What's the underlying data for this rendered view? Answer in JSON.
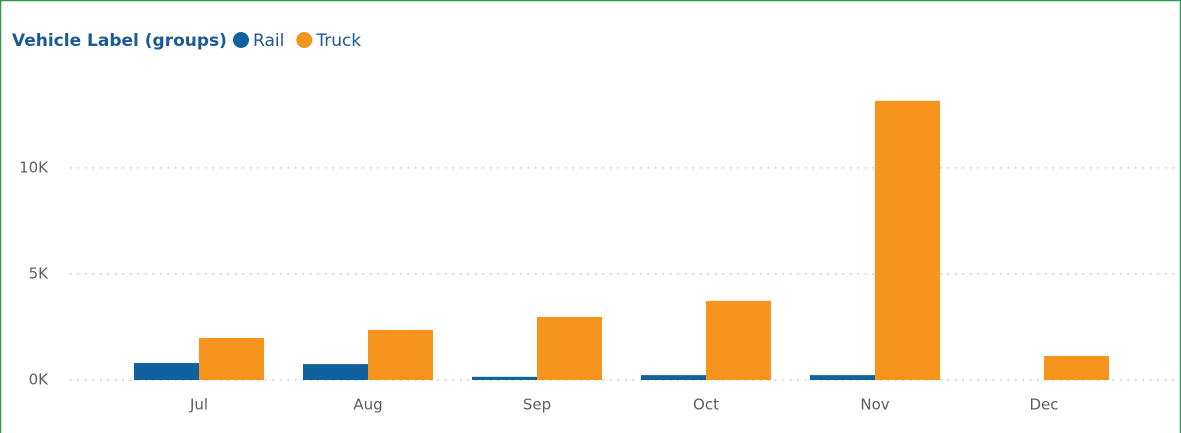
{
  "chart_data": {
    "type": "bar",
    "legend_title": "Vehicle Label (groups)",
    "categories": [
      "Jul",
      "Aug",
      "Sep",
      "Oct",
      "Nov",
      "Dec"
    ],
    "series": [
      {
        "name": "Rail",
        "color": "#12609e",
        "values": [
          800,
          750,
          150,
          230,
          230,
          null
        ]
      },
      {
        "name": "Truck",
        "color": "#f7941d",
        "values": [
          1980,
          2360,
          2970,
          3730,
          13160,
          1130
        ]
      }
    ],
    "ylim": [
      0,
      14000
    ],
    "yticks": [
      {
        "value": 0,
        "label": "0K"
      },
      {
        "value": 5000,
        "label": "5K"
      },
      {
        "value": 10000,
        "label": "10K"
      }
    ],
    "grid": true,
    "legend": "top-left"
  }
}
